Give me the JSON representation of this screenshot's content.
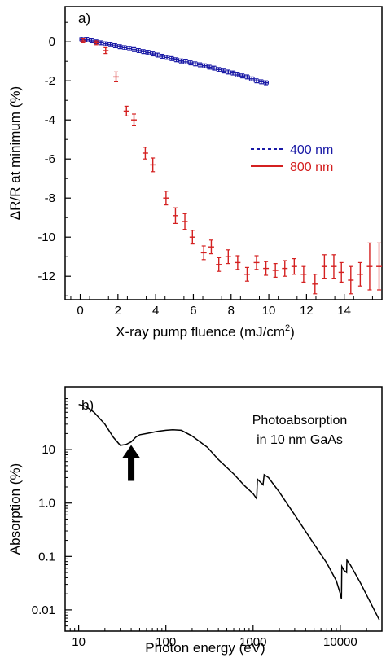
{
  "chart_data": [
    {
      "type": "scatter",
      "panel_label": "a)",
      "xlabel": "X-ray pump fluence (mJ/cm",
      "xlabel_sup": "2",
      "xlabel_close": ")",
      "ylabel": "ΔR/R at minimum (%)",
      "xlim": [
        -0.8,
        16
      ],
      "ylim": [
        -13.2,
        1.8
      ],
      "xticks": [
        0,
        2,
        4,
        6,
        8,
        10,
        12,
        14
      ],
      "yticks": [
        0,
        -2,
        -4,
        -6,
        -8,
        -10,
        -12
      ],
      "colors": {
        "s400": "#1a1aa6",
        "s800": "#d42020"
      },
      "legend_position": "right-middle",
      "series": [
        {
          "name": "400 nm",
          "color": "#1a1aa6",
          "x": [
            0.1,
            0.35,
            0.6,
            0.85,
            1.1,
            1.35,
            1.6,
            1.85,
            2.1,
            2.35,
            2.6,
            2.85,
            3.1,
            3.35,
            3.6,
            3.85,
            4.1,
            4.35,
            4.6,
            4.85,
            5.1,
            5.35,
            5.6,
            5.85,
            6.1,
            6.35,
            6.6,
            6.85,
            7.1,
            7.35,
            7.6,
            7.85,
            8.1,
            8.35,
            8.6,
            8.85,
            9.1,
            9.35,
            9.6,
            9.85
          ],
          "y": [
            0.12,
            0.1,
            0.05,
            0.0,
            -0.05,
            -0.1,
            -0.15,
            -0.2,
            -0.25,
            -0.3,
            -0.35,
            -0.4,
            -0.45,
            -0.5,
            -0.56,
            -0.62,
            -0.68,
            -0.74,
            -0.8,
            -0.86,
            -0.92,
            -0.98,
            -1.03,
            -1.08,
            -1.13,
            -1.18,
            -1.23,
            -1.3,
            -1.35,
            -1.42,
            -1.5,
            -1.55,
            -1.6,
            -1.7,
            -1.75,
            -1.8,
            -1.9,
            -2.0,
            -2.05,
            -2.1
          ],
          "xerr": 0.12,
          "yerr": 0.1
        },
        {
          "name": "800 nm",
          "color": "#d42020",
          "x": [
            0.15,
            0.85,
            1.35,
            1.9,
            2.45,
            2.85,
            3.45,
            3.85,
            4.55,
            5.05,
            5.55,
            5.95,
            6.55,
            6.95,
            7.35,
            7.85,
            8.35,
            8.85,
            9.35,
            9.85,
            10.35,
            10.85,
            11.35,
            11.85,
            12.45,
            12.95,
            13.45,
            13.85,
            14.35,
            14.85,
            15.35,
            15.85
          ],
          "y": [
            0.05,
            -0.05,
            -0.45,
            -1.8,
            -3.55,
            -4.0,
            -5.7,
            -6.3,
            -8.0,
            -8.9,
            -9.2,
            -10.0,
            -10.8,
            -10.5,
            -11.4,
            -11.0,
            -11.3,
            -11.9,
            -11.3,
            -11.6,
            -11.7,
            -11.6,
            -11.5,
            -11.9,
            -12.4,
            -11.5,
            -11.5,
            -11.8,
            -12.2,
            -11.9,
            -11.5,
            -11.5
          ],
          "xerr": 0.15,
          "yerr": [
            0.1,
            0.1,
            0.15,
            0.25,
            0.25,
            0.3,
            0.3,
            0.35,
            0.35,
            0.4,
            0.4,
            0.35,
            0.35,
            0.35,
            0.35,
            0.35,
            0.35,
            0.35,
            0.35,
            0.35,
            0.35,
            0.4,
            0.4,
            0.4,
            0.5,
            0.6,
            0.6,
            0.5,
            0.7,
            0.6,
            1.2,
            1.2
          ]
        }
      ]
    },
    {
      "type": "line",
      "panel_label": "b)",
      "xlabel": "Photon energy (eV)",
      "ylabel": "Absorption (%)",
      "xscale": "log",
      "yscale": "log",
      "xlim": [
        7,
        30000
      ],
      "ylim": [
        0.004,
        150
      ],
      "xticks": [
        10,
        100,
        1000,
        10000
      ],
      "xtick_labels": [
        "10",
        "100",
        "1000",
        "10000"
      ],
      "yticks": [
        10,
        1.0,
        0.1,
        0.01
      ],
      "ytick_labels": [
        "10",
        "1.0",
        "0.1",
        "0.01"
      ],
      "annotation_line1": "Photoabsorption",
      "annotation_line2": "in 10 nm GaAs",
      "arrow_x": 40,
      "series": [
        {
          "x": [
            10,
            12,
            15,
            20,
            25,
            30,
            35,
            40,
            45,
            50,
            60,
            70,
            80,
            100,
            120,
            150,
            200,
            300,
            400,
            600,
            800,
            1000,
            1100,
            1120,
            1200,
            1300,
            1340,
            1500,
            2000,
            3000,
            5000,
            7000,
            9000,
            10000,
            10300,
            10400,
            11000,
            11800,
            11900,
            13000,
            17000,
            22000,
            28000
          ],
          "y": [
            70,
            65,
            50,
            30,
            17,
            12,
            12.5,
            14,
            17,
            19,
            20,
            21,
            22,
            23,
            23.5,
            23,
            18,
            11,
            6.5,
            3.5,
            2.1,
            1.5,
            1.2,
            2.8,
            2.5,
            2.2,
            3.4,
            3.0,
            1.6,
            0.6,
            0.17,
            0.075,
            0.035,
            0.02,
            0.016,
            0.065,
            0.055,
            0.05,
            0.085,
            0.07,
            0.032,
            0.014,
            0.0065
          ]
        }
      ]
    }
  ]
}
